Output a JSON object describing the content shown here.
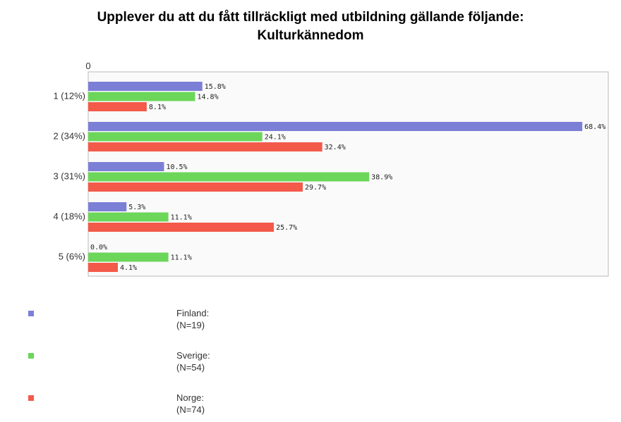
{
  "chart_data": {
    "type": "bar",
    "orientation": "horizontal",
    "title_line1": "Upplever du att du fått tillräckligt med utbildning gällande följande:",
    "title_line2": "Kulturkännedom",
    "axis_zero_label": "0",
    "categories": [
      "1 (12%)",
      "2 (34%)",
      "3 (31%)",
      "4 (18%)",
      "5 (6%)"
    ],
    "xlim": [
      0,
      72
    ],
    "grid": false,
    "legend_position": "bottom-left",
    "series": [
      {
        "name": "Finland:",
        "n_label": "(N=19)",
        "color": "#7b7fd6",
        "values": [
          15.8,
          68.4,
          10.5,
          5.3,
          0.0
        ],
        "labels": [
          "15.8%",
          "68.4%",
          "10.5%",
          "5.3%",
          "0.0%"
        ]
      },
      {
        "name": "Sverige:",
        "n_label": "(N=54)",
        "color": "#6cd65a",
        "values": [
          14.8,
          24.1,
          38.9,
          11.1,
          11.1
        ],
        "labels": [
          "14.8%",
          "24.1%",
          "38.9%",
          "11.1%",
          "11.1%"
        ]
      },
      {
        "name": "Norge:",
        "n_label": "(N=74)",
        "color": "#f35a4a",
        "values": [
          8.1,
          32.4,
          29.7,
          25.7,
          4.1
        ],
        "labels": [
          "8.1%",
          "32.4%",
          "29.7%",
          "25.7%",
          "4.1%"
        ]
      }
    ]
  }
}
